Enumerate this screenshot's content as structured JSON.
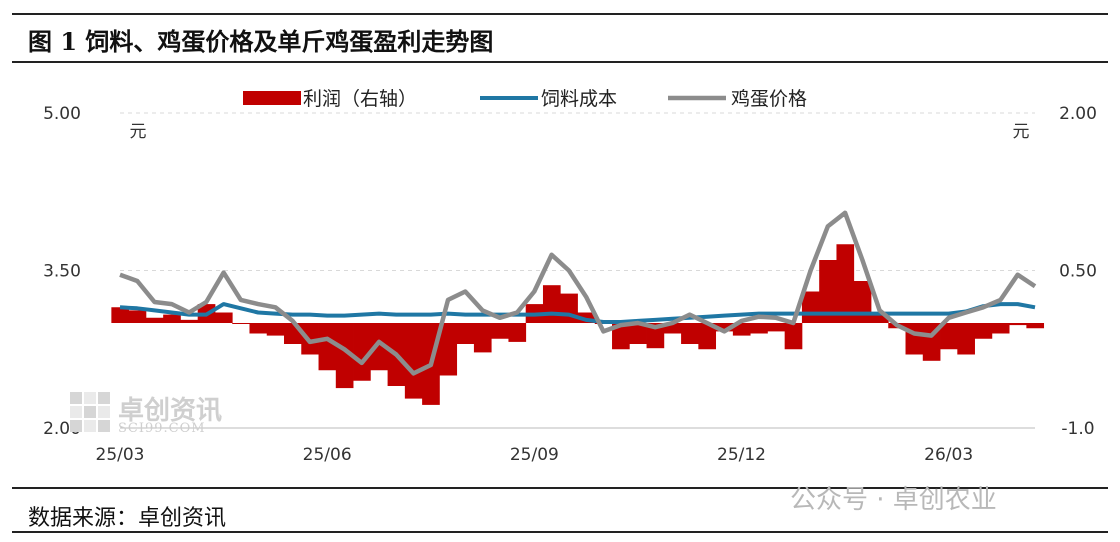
{
  "header": {
    "title": "图 1  饲料、鸡蛋价格及单斤鸡蛋盈利走势图"
  },
  "footer": {
    "source": "数据来源：卓创资讯"
  },
  "watermark": {
    "brand": "公众号 · 卓创农业",
    "logo_name": "卓创资讯",
    "logo_site": "SCI99.COM"
  },
  "chart_data": {
    "type": "line",
    "left_unit": "元",
    "right_unit": "元",
    "x_ticks": [
      "25/03",
      "25/06",
      "25/09",
      "25/12",
      "26/03"
    ],
    "y_left": {
      "min": 2.0,
      "max": 5.0,
      "ticks": [
        "2.00",
        "3.50",
        "5.00"
      ]
    },
    "y_right": {
      "min": -1.0,
      "max": 2.0,
      "ticks": [
        "-1.0",
        "0.50",
        "2.00"
      ]
    },
    "grid": true,
    "legend": {
      "position": "top",
      "items": [
        "利润（右轴）",
        "饲料成本",
        "鸡蛋价格"
      ]
    },
    "colors": {
      "profit": "#c00000",
      "feed": "#1f77a4",
      "egg": "#8c8c8c"
    },
    "x_months": [
      0,
      0.25,
      0.5,
      0.75,
      1,
      1.25,
      1.5,
      1.75,
      2,
      2.25,
      2.5,
      2.75,
      3,
      3.25,
      3.5,
      3.75,
      4,
      4.25,
      4.5,
      4.75,
      5,
      5.25,
      5.5,
      5.75,
      6,
      6.25,
      6.5,
      6.75,
      7,
      7.25,
      7.5,
      7.75,
      8,
      8.25,
      8.5,
      8.75,
      9,
      9.25,
      9.5,
      9.75,
      10,
      10.25,
      10.5,
      10.75,
      11,
      11.25,
      11.5,
      11.75,
      12,
      12.25,
      12.5,
      12.75,
      13,
      13.25
    ],
    "series": [
      {
        "name": "利润（右轴）",
        "axis": "right",
        "values": [
          0.15,
          0.12,
          0.05,
          0.08,
          0.03,
          0.18,
          0.1,
          0.0,
          -0.1,
          -0.12,
          -0.2,
          -0.3,
          -0.45,
          -0.62,
          -0.55,
          -0.45,
          -0.6,
          -0.72,
          -0.78,
          -0.5,
          -0.2,
          -0.28,
          -0.15,
          -0.18,
          0.18,
          0.36,
          0.28,
          0.1,
          0.0,
          -0.25,
          -0.2,
          -0.24,
          -0.1,
          -0.2,
          -0.25,
          -0.08,
          -0.12,
          -0.1,
          -0.08,
          -0.25,
          0.3,
          0.6,
          0.75,
          0.4,
          0.1,
          -0.05,
          -0.3,
          -0.36,
          -0.25,
          -0.3,
          -0.15,
          -0.1,
          -0.02,
          -0.05
        ]
      },
      {
        "name": "饲料成本",
        "axis": "left",
        "values": [
          3.15,
          3.14,
          3.12,
          3.1,
          3.08,
          3.08,
          3.18,
          3.14,
          3.1,
          3.09,
          3.08,
          3.08,
          3.07,
          3.07,
          3.08,
          3.09,
          3.08,
          3.08,
          3.08,
          3.09,
          3.08,
          3.08,
          3.08,
          3.08,
          3.08,
          3.09,
          3.08,
          3.03,
          3.01,
          3.01,
          3.02,
          3.03,
          3.04,
          3.05,
          3.06,
          3.07,
          3.08,
          3.09,
          3.09,
          3.09,
          3.09,
          3.09,
          3.09,
          3.09,
          3.09,
          3.09,
          3.09,
          3.09,
          3.09,
          3.11,
          3.16,
          3.18,
          3.18,
          3.15
        ]
      },
      {
        "name": "鸡蛋价格",
        "axis": "left",
        "values": [
          3.46,
          3.4,
          3.2,
          3.18,
          3.1,
          3.2,
          3.48,
          3.22,
          3.18,
          3.15,
          3.02,
          2.82,
          2.85,
          2.75,
          2.62,
          2.82,
          2.7,
          2.52,
          2.6,
          3.22,
          3.3,
          3.12,
          3.05,
          3.1,
          3.3,
          3.65,
          3.5,
          3.25,
          2.92,
          2.98,
          3.0,
          2.96,
          3.0,
          3.08,
          3.0,
          2.92,
          3.02,
          3.06,
          3.05,
          3.0,
          3.5,
          3.92,
          4.05,
          3.6,
          3.12,
          2.98,
          2.9,
          2.88,
          3.05,
          3.1,
          3.15,
          3.22,
          3.46,
          3.35
        ]
      }
    ]
  }
}
